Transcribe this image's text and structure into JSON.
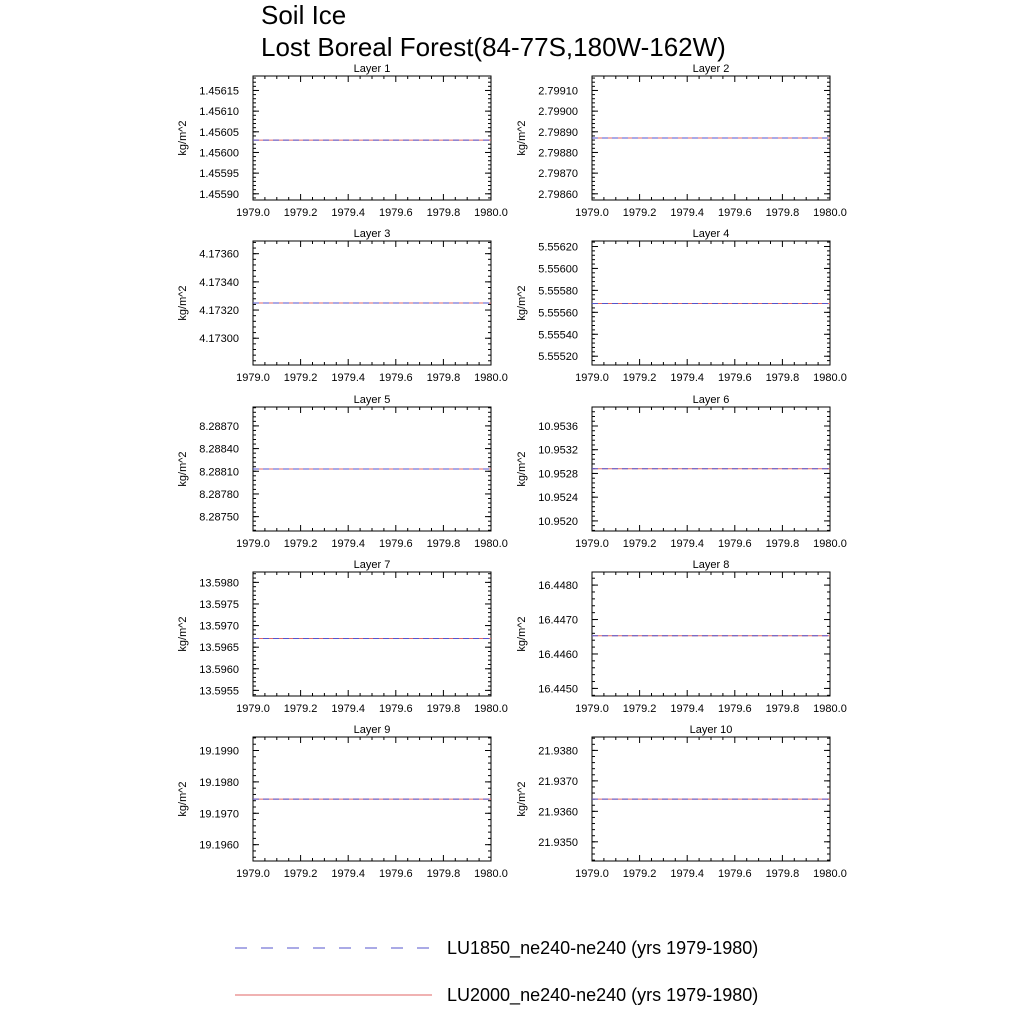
{
  "title": {
    "line1": "Soil Ice",
    "line2": "Lost Boreal Forest(84-77S,180W-162W)"
  },
  "legend": [
    {
      "label": "LU1850_ne240-ne240 (yrs 1979-1980)",
      "color": "#5555cc",
      "style": "dashed"
    },
    {
      "label": "LU2000_ne240-ne240 (yrs 1979-1980)",
      "color": "#e06666",
      "style": "solid"
    }
  ],
  "chart_data": [
    {
      "type": "line",
      "title": "Layer 1",
      "ylabel": "kg/m^2",
      "xlim": [
        1979.0,
        1980.0
      ],
      "xticks": [
        "1979.0",
        "1979.2",
        "1979.4",
        "1979.6",
        "1979.8",
        "1980.0"
      ],
      "ylim": [
        1.455885,
        1.456185
      ],
      "yticks": [
        "1.45590",
        "1.45595",
        "1.45600",
        "1.45605",
        "1.45610",
        "1.45615"
      ],
      "series": [
        {
          "name": "LU1850_ne240-ne240 (yrs 1979-1980)",
          "x": [
            1979.0,
            1980.0
          ],
          "y": [
            1.45603,
            1.45603
          ]
        },
        {
          "name": "LU2000_ne240-ne240 (yrs 1979-1980)",
          "x": [
            1979.0,
            1980.0
          ],
          "y": [
            1.45603,
            1.45603
          ]
        }
      ]
    },
    {
      "type": "line",
      "title": "Layer 2",
      "ylabel": "kg/m^2",
      "xlim": [
        1979.0,
        1980.0
      ],
      "xticks": [
        "1979.0",
        "1979.2",
        "1979.4",
        "1979.6",
        "1979.8",
        "1980.0"
      ],
      "ylim": [
        2.79857,
        2.79917
      ],
      "yticks": [
        "2.79860",
        "2.79870",
        "2.79880",
        "2.79890",
        "2.79900",
        "2.79910"
      ],
      "series": [
        {
          "name": "LU1850_ne240-ne240 (yrs 1979-1980)",
          "x": [
            1979.0,
            1980.0
          ],
          "y": [
            2.79887,
            2.79887
          ]
        },
        {
          "name": "LU2000_ne240-ne240 (yrs 1979-1980)",
          "x": [
            1979.0,
            1980.0
          ],
          "y": [
            2.79887,
            2.79887
          ]
        }
      ]
    },
    {
      "type": "line",
      "title": "Layer 3",
      "ylabel": "kg/m^2",
      "xlim": [
        1979.0,
        1980.0
      ],
      "xticks": [
        "1979.0",
        "1979.2",
        "1979.4",
        "1979.6",
        "1979.8",
        "1980.0"
      ],
      "ylim": [
        4.17281,
        4.17369
      ],
      "yticks": [
        "4.17300",
        "4.17320",
        "4.17340",
        "4.17360"
      ],
      "series": [
        {
          "name": "LU1850_ne240-ne240 (yrs 1979-1980)",
          "x": [
            1979.0,
            1980.0
          ],
          "y": [
            4.17325,
            4.17325
          ]
        },
        {
          "name": "LU2000_ne240-ne240 (yrs 1979-1980)",
          "x": [
            1979.0,
            1980.0
          ],
          "y": [
            4.17325,
            4.17325
          ]
        }
      ]
    },
    {
      "type": "line",
      "title": "Layer 4",
      "ylabel": "kg/m^2",
      "xlim": [
        1979.0,
        1980.0
      ],
      "xticks": [
        "1979.0",
        "1979.2",
        "1979.4",
        "1979.6",
        "1979.8",
        "1980.0"
      ],
      "ylim": [
        5.55512,
        5.55625
      ],
      "yticks": [
        "5.55520",
        "5.55540",
        "5.55560",
        "5.55580",
        "5.55600",
        "5.55620"
      ],
      "series": [
        {
          "name": "LU1850_ne240-ne240 (yrs 1979-1980)",
          "x": [
            1979.0,
            1980.0
          ],
          "y": [
            5.55568,
            5.55568
          ]
        },
        {
          "name": "LU2000_ne240-ne240 (yrs 1979-1980)",
          "x": [
            1979.0,
            1980.0
          ],
          "y": [
            5.55568,
            5.55568
          ]
        }
      ]
    },
    {
      "type": "line",
      "title": "Layer 5",
      "ylabel": "kg/m^2",
      "xlim": [
        1979.0,
        1980.0
      ],
      "xticks": [
        "1979.0",
        "1979.2",
        "1979.4",
        "1979.6",
        "1979.8",
        "1980.0"
      ],
      "ylim": [
        8.28731,
        8.28895
      ],
      "yticks": [
        "8.28750",
        "8.28780",
        "8.28810",
        "8.28840",
        "8.28870"
      ],
      "series": [
        {
          "name": "LU1850_ne240-ne240 (yrs 1979-1980)",
          "x": [
            1979.0,
            1980.0
          ],
          "y": [
            8.28813,
            8.28813
          ]
        },
        {
          "name": "LU2000_ne240-ne240 (yrs 1979-1980)",
          "x": [
            1979.0,
            1980.0
          ],
          "y": [
            8.28813,
            8.28813
          ]
        }
      ]
    },
    {
      "type": "line",
      "title": "Layer 6",
      "ylabel": "kg/m^2",
      "xlim": [
        1979.0,
        1980.0
      ],
      "xticks": [
        "1979.0",
        "1979.2",
        "1979.4",
        "1979.6",
        "1979.8",
        "1980.0"
      ],
      "ylim": [
        10.95183,
        10.95392
      ],
      "yticks": [
        "10.9520",
        "10.9524",
        "10.9528",
        "10.9532",
        "10.9536"
      ],
      "series": [
        {
          "name": "LU1850_ne240-ne240 (yrs 1979-1980)",
          "x": [
            1979.0,
            1980.0
          ],
          "y": [
            10.95288,
            10.95288
          ]
        },
        {
          "name": "LU2000_ne240-ne240 (yrs 1979-1980)",
          "x": [
            1979.0,
            1980.0
          ],
          "y": [
            10.95288,
            10.95288
          ]
        }
      ]
    },
    {
      "type": "line",
      "title": "Layer 7",
      "ylabel": "kg/m^2",
      "xlim": [
        1979.0,
        1980.0
      ],
      "xticks": [
        "1979.0",
        "1979.2",
        "1979.4",
        "1979.6",
        "1979.8",
        "1980.0"
      ],
      "ylim": [
        13.59537,
        13.59824
      ],
      "yticks": [
        "13.5955",
        "13.5960",
        "13.5965",
        "13.5970",
        "13.5975",
        "13.5980"
      ],
      "series": [
        {
          "name": "LU1850_ne240-ne240 (yrs 1979-1980)",
          "x": [
            1979.0,
            1980.0
          ],
          "y": [
            13.5967,
            13.5967
          ]
        },
        {
          "name": "LU2000_ne240-ne240 (yrs 1979-1980)",
          "x": [
            1979.0,
            1980.0
          ],
          "y": [
            13.5967,
            13.5967
          ]
        }
      ]
    },
    {
      "type": "line",
      "title": "Layer 8",
      "ylabel": "kg/m^2",
      "xlim": [
        1979.0,
        1980.0
      ],
      "xticks": [
        "1979.0",
        "1979.2",
        "1979.4",
        "1979.6",
        "1979.8",
        "1980.0"
      ],
      "ylim": [
        16.44478,
        16.44838
      ],
      "yticks": [
        "16.4450",
        "16.4460",
        "16.4470",
        "16.4480"
      ],
      "series": [
        {
          "name": "LU1850_ne240-ne240 (yrs 1979-1980)",
          "x": [
            1979.0,
            1980.0
          ],
          "y": [
            16.44653,
            16.44653
          ]
        },
        {
          "name": "LU2000_ne240-ne240 (yrs 1979-1980)",
          "x": [
            1979.0,
            1980.0
          ],
          "y": [
            16.44653,
            16.44653
          ]
        }
      ]
    },
    {
      "type": "line",
      "title": "Layer 9",
      "ylabel": "kg/m^2",
      "xlim": [
        1979.0,
        1980.0
      ],
      "xticks": [
        "1979.0",
        "1979.2",
        "1979.4",
        "1979.6",
        "1979.8",
        "1980.0"
      ],
      "ylim": [
        19.19548,
        19.19943
      ],
      "yticks": [
        "19.1960",
        "19.1970",
        "19.1980",
        "19.1990"
      ],
      "series": [
        {
          "name": "LU1850_ne240-ne240 (yrs 1979-1980)",
          "x": [
            1979.0,
            1980.0
          ],
          "y": [
            19.19745,
            19.19745
          ]
        },
        {
          "name": "LU2000_ne240-ne240 (yrs 1979-1980)",
          "x": [
            1979.0,
            1980.0
          ],
          "y": [
            19.19745,
            19.19745
          ]
        }
      ]
    },
    {
      "type": "line",
      "title": "Layer 10",
      "ylabel": "kg/m^2",
      "xlim": [
        1979.0,
        1980.0
      ],
      "xticks": [
        "1979.0",
        "1979.2",
        "1979.4",
        "1979.6",
        "1979.8",
        "1980.0"
      ],
      "ylim": [
        21.93437,
        21.93844
      ],
      "yticks": [
        "21.9350",
        "21.9360",
        "21.9370",
        "21.9380"
      ],
      "series": [
        {
          "name": "LU1850_ne240-ne240 (yrs 1979-1980)",
          "x": [
            1979.0,
            1980.0
          ],
          "y": [
            21.9364,
            21.9364
          ]
        },
        {
          "name": "LU2000_ne240-ne240 (yrs 1979-1980)",
          "x": [
            1979.0,
            1980.0
          ],
          "y": [
            21.9364,
            21.9364
          ]
        }
      ]
    }
  ]
}
